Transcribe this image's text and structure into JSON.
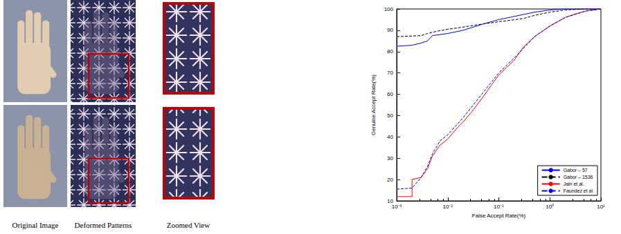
{
  "figure": {
    "captions": [
      "Original Image",
      "Deformed Patterns",
      "Zoomed View"
    ]
  },
  "chart_data": {
    "type": "line",
    "x_label": "False Accept Rate(%)",
    "y_label": "Genuine Accept Rate(%)",
    "log": "x",
    "grid": false,
    "legend": "lower right",
    "xlim": [
      0.001,
      10
    ],
    "xticks": [
      {
        "value": 0.001,
        "label": "10⁻³"
      },
      {
        "value": 0.01,
        "label": "10⁻²"
      },
      {
        "value": 0.1,
        "label": "10⁻¹"
      },
      {
        "value": 1,
        "label": "10⁰"
      },
      {
        "value": 10,
        "label": "10¹"
      }
    ],
    "ylim": [
      10,
      100
    ],
    "yticks": [
      10,
      20,
      30,
      40,
      50,
      60,
      70,
      80,
      90,
      100
    ],
    "series": [
      {
        "name": "Gabor – 57",
        "color": "#0000ff",
        "line_style": "solid",
        "x": [
          0.001,
          0.002,
          0.003,
          0.004,
          0.005,
          0.01,
          0.02,
          0.05,
          0.1,
          0.2,
          0.5,
          1,
          2,
          10
        ],
        "values": [
          82.5,
          83,
          84,
          85,
          87.5,
          88.5,
          90,
          93,
          95,
          96.5,
          98.5,
          99.5,
          100,
          100
        ]
      },
      {
        "name": "Gabor – 1536",
        "color": "#000000",
        "line_style": "dashed",
        "x": [
          0.001,
          0.003,
          0.004,
          0.006,
          0.01,
          0.02,
          0.05,
          0.1,
          0.3,
          0.5,
          1,
          2,
          5,
          10
        ],
        "values": [
          87,
          87.5,
          88.5,
          89.5,
          90.5,
          91.5,
          93,
          94,
          95.5,
          97,
          98.5,
          99.5,
          100,
          100
        ]
      },
      {
        "name": "Jain et al.",
        "color": "#ff0000",
        "line_style": "solid",
        "x": [
          0.001,
          0.002,
          0.002,
          0.003,
          0.004,
          0.005,
          0.007,
          0.01,
          0.015,
          0.02,
          0.03,
          0.05,
          0.07,
          0.1,
          0.2,
          0.3,
          0.5,
          1,
          2,
          3,
          5,
          10
        ],
        "values": [
          12,
          12,
          20,
          21,
          25,
          31,
          36,
          39,
          44,
          47,
          52,
          59,
          64,
          69,
          76,
          82,
          87,
          92,
          96,
          97.5,
          99,
          100
        ]
      },
      {
        "name": "Faundez et al.",
        "color": "#0000ff",
        "line_style": "dashed",
        "x": [
          0.001,
          0.002,
          0.003,
          0.004,
          0.005,
          0.007,
          0.01,
          0.02,
          0.05,
          0.1,
          0.2,
          0.5,
          1,
          2,
          5,
          10
        ],
        "values": [
          15.5,
          16,
          21,
          26,
          32,
          38,
          41,
          49,
          61,
          70,
          77,
          87,
          92,
          96,
          99,
          100
        ]
      }
    ]
  }
}
